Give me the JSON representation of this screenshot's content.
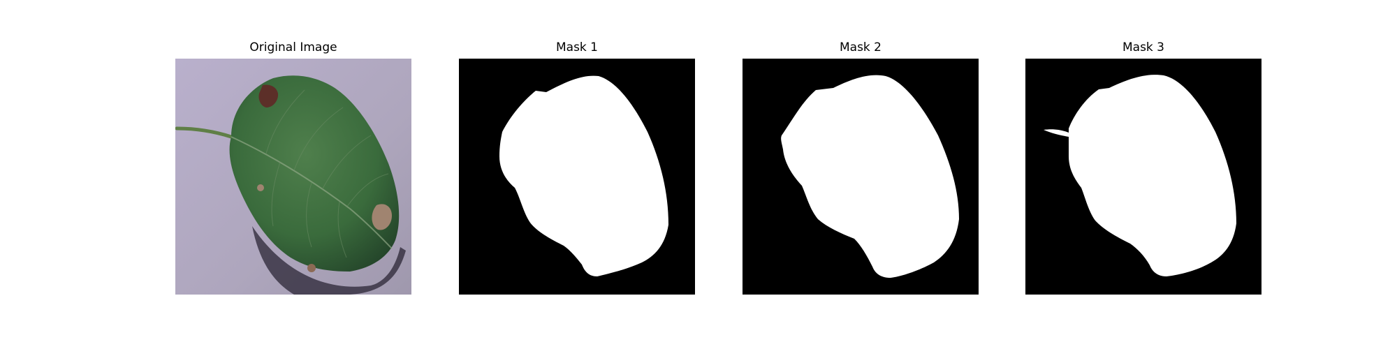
{
  "figure": {
    "panels": [
      {
        "title": "Original Image",
        "kind": "photo",
        "subject": "leaf"
      },
      {
        "title": "Mask 1",
        "kind": "binary-mask"
      },
      {
        "title": "Mask 2",
        "kind": "binary-mask"
      },
      {
        "title": "Mask 3",
        "kind": "binary-mask"
      }
    ]
  },
  "colors": {
    "background": "#ffffff",
    "mask_background": "#000000",
    "mask_foreground": "#ffffff",
    "photo_background": "#b3a9c4",
    "leaf_green": "#3a6b3c",
    "leaf_dark": "#24452a",
    "lesion_brown": "#a08470"
  }
}
